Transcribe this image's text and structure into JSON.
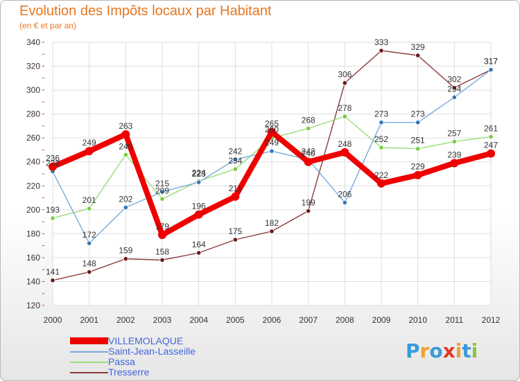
{
  "title": "Evolution des Impôts locaux par Habitant",
  "subtitle": "(en € et par an)",
  "logo": {
    "letters": [
      {
        "ch": "P",
        "color": "#3a9ad9"
      },
      {
        "ch": "r",
        "color": "#f0a030"
      },
      {
        "ch": "o",
        "color": "#3a9ad9"
      },
      {
        "ch": "x",
        "color": "#e03a2a"
      },
      {
        "ch": "i",
        "color": "#f0a030"
      },
      {
        "ch": "t",
        "color": "#3a9ad9"
      },
      {
        "ch": "i",
        "color": "#8ac43a"
      }
    ]
  },
  "chart_data": {
    "type": "line",
    "title": "Evolution des Impôts locaux par Habitant",
    "ylabel": "(en € et par an)",
    "xlabel": "",
    "categories": [
      "2000",
      "2001",
      "2002",
      "2003",
      "2004",
      "2005",
      "2006",
      "2007",
      "2008",
      "2009",
      "2010",
      "2011",
      "2012"
    ],
    "ylim": [
      120,
      340
    ],
    "yticks": [
      "120",
      "140",
      "160",
      "180",
      "200",
      "220",
      "240",
      "260",
      "280",
      "300",
      "320",
      "340"
    ],
    "grid": true,
    "legend_position": "bottom-left",
    "series": [
      {
        "name": "Tresserre",
        "color": "#8a3a3a",
        "marker": "#6b1a1a",
        "labels": [
          "141",
          "148",
          "159",
          "158",
          "164",
          "175",
          "182",
          "199",
          "306",
          "333",
          "329",
          "302",
          "317"
        ],
        "values": [
          141,
          148,
          159,
          158,
          164,
          175,
          182,
          199,
          306,
          333,
          329,
          302,
          317
        ]
      },
      {
        "name": "Passa",
        "color": "#99dd77",
        "marker": "#77cc44",
        "labels": [
          "193",
          "201",
          "246",
          "209",
          "224",
          "234",
          "260",
          "268",
          "278",
          "252",
          "251",
          "257",
          "261"
        ],
        "values": [
          193,
          201,
          246,
          209,
          224,
          234,
          260,
          268,
          278,
          252,
          251,
          257,
          261
        ]
      },
      {
        "name": "Saint-Jean-Lasseille",
        "color": "#77aadd",
        "marker": "#3377bb",
        "labels": [
          "232",
          "172",
          "202",
          "215",
          "223",
          "242",
          "249",
          "242",
          "206",
          "273",
          "273",
          "294",
          "317"
        ],
        "values": [
          232,
          172,
          202,
          215,
          223,
          242,
          249,
          242,
          206,
          273,
          273,
          294,
          317
        ]
      },
      {
        "name": "VILLEMOLAQUE",
        "color": "#ee0000",
        "marker": "#ee0000",
        "labels": [
          "236",
          "249",
          "263",
          "179",
          "196",
          "211",
          "265",
          "240",
          "248",
          "222",
          "229",
          "239",
          "247"
        ],
        "values": [
          236,
          249,
          263,
          179,
          196,
          211,
          265,
          240,
          248,
          222,
          229,
          239,
          247
        ]
      }
    ]
  },
  "legend": [
    {
      "name": "VILLEMOLAQUE",
      "color": "#ee0000"
    },
    {
      "name": "Saint-Jean-Lasseille",
      "color": "#77aadd"
    },
    {
      "name": "Passa",
      "color": "#99dd77"
    },
    {
      "name": "Tresserre",
      "color": "#8a3a3a"
    }
  ]
}
